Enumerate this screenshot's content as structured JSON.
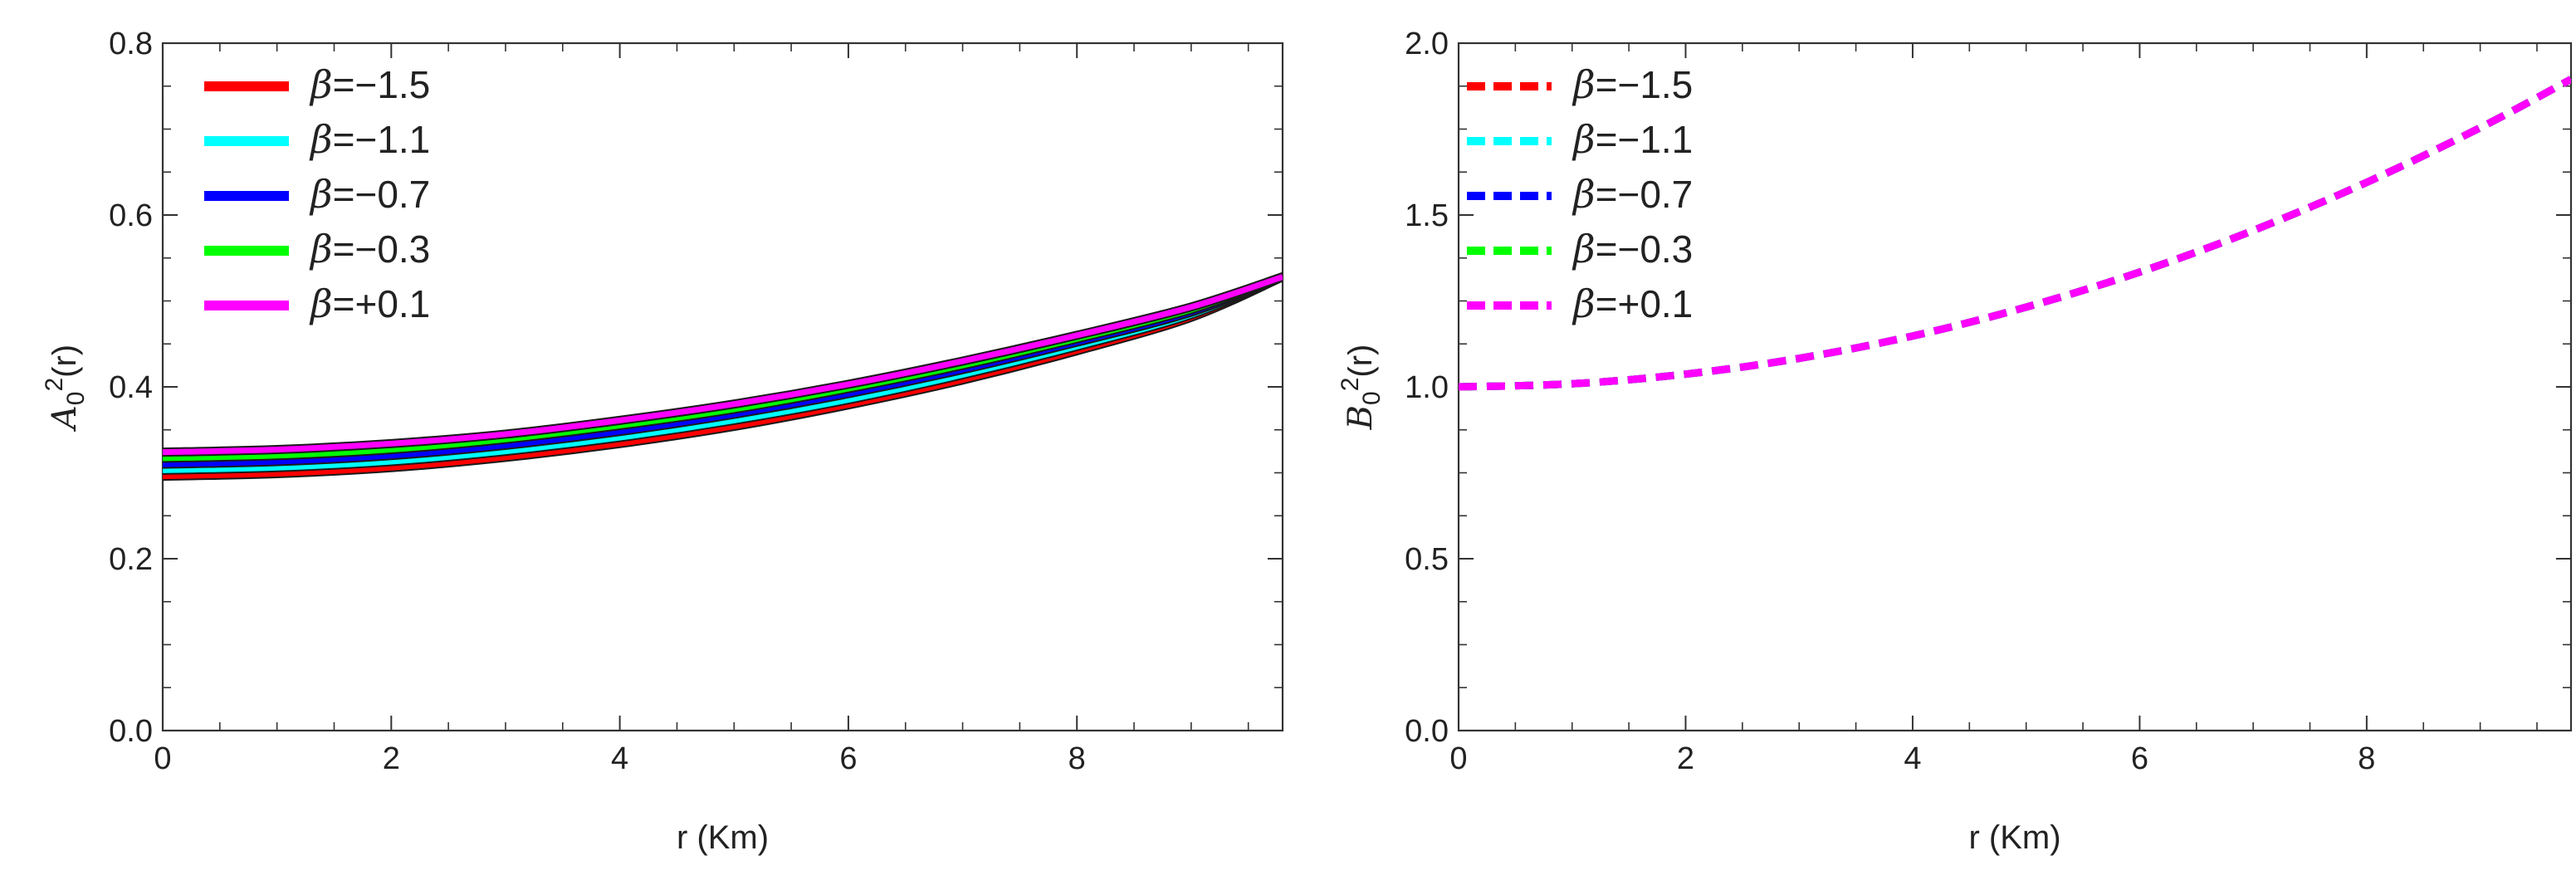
{
  "chart_data": [
    {
      "type": "line",
      "xlabel": "r (Km)",
      "ylabel": {
        "base": "A",
        "sub": "0",
        "sup": "2",
        "suffix": "(r)"
      },
      "xlim": [
        0,
        9.8
      ],
      "ylim": [
        0,
        0.8
      ],
      "xticks": [
        0,
        2,
        4,
        6,
        8
      ],
      "xtick_labels": [
        "0",
        "2",
        "4",
        "6",
        "8"
      ],
      "yticks": [
        0,
        0.2,
        0.4,
        0.6,
        0.8
      ],
      "ytick_labels": [
        "0.0",
        "0.2",
        "0.4",
        "0.6",
        "0.8"
      ],
      "grid": false,
      "legend_position": "top-left",
      "line_style": "solid",
      "x": [
        0,
        1,
        2,
        3,
        4,
        5,
        6,
        7,
        8,
        9,
        9.8
      ],
      "series": [
        {
          "name": "β=−1.5",
          "greek": "β",
          "value": "=−1.5",
          "color": "#ff0000",
          "values": [
            0.296,
            0.299,
            0.306,
            0.318,
            0.334,
            0.354,
            0.379,
            0.408,
            0.442,
            0.481,
            0.528
          ]
        },
        {
          "name": "β=−1.1",
          "greek": "β",
          "value": "=−1.1",
          "color": "#00ffff",
          "values": [
            0.303,
            0.306,
            0.313,
            0.325,
            0.341,
            0.361,
            0.385,
            0.414,
            0.447,
            0.484,
            0.528
          ]
        },
        {
          "name": "β=−0.7",
          "greek": "β",
          "value": "=−0.7",
          "color": "#0000ff",
          "values": [
            0.31,
            0.313,
            0.32,
            0.332,
            0.348,
            0.368,
            0.392,
            0.42,
            0.452,
            0.487,
            0.528
          ]
        },
        {
          "name": "β=−0.3",
          "greek": "β",
          "value": "=−0.3",
          "color": "#00ff00",
          "values": [
            0.317,
            0.32,
            0.327,
            0.339,
            0.355,
            0.374,
            0.398,
            0.425,
            0.456,
            0.49,
            0.528
          ]
        },
        {
          "name": "β=+0.1",
          "greek": "β",
          "value": "=+0.1",
          "color": "#ff00ff",
          "values": [
            0.324,
            0.327,
            0.334,
            0.345,
            0.361,
            0.38,
            0.403,
            0.43,
            0.46,
            0.493,
            0.528
          ]
        }
      ]
    },
    {
      "type": "line",
      "xlabel": "r (Km)",
      "ylabel": {
        "base": "B",
        "sub": "0",
        "sup": "2",
        "suffix": "(r)"
      },
      "xlim": [
        0,
        9.8
      ],
      "ylim": [
        0,
        2.0
      ],
      "xticks": [
        0,
        2,
        4,
        6,
        8
      ],
      "xtick_labels": [
        "0",
        "2",
        "4",
        "6",
        "8"
      ],
      "yticks": [
        0,
        0.5,
        1.0,
        1.5,
        2.0
      ],
      "ytick_labels": [
        "0.0",
        "0.5",
        "1.0",
        "1.5",
        "2.0"
      ],
      "grid": false,
      "legend_position": "top-left",
      "line_style": "dashed",
      "x": [
        0,
        1,
        2,
        3,
        4,
        5,
        6,
        7,
        8,
        9,
        9.8
      ],
      "series": [
        {
          "name": "β=−1.5",
          "greek": "β",
          "value": "=−1.5",
          "color": "#ff0000",
          "values": [
            1.0,
            1.009,
            1.037,
            1.083,
            1.148,
            1.232,
            1.334,
            1.455,
            1.595,
            1.754,
            1.895
          ]
        },
        {
          "name": "β=−1.1",
          "greek": "β",
          "value": "=−1.1",
          "color": "#00ffff",
          "values": [
            1.0,
            1.009,
            1.037,
            1.083,
            1.148,
            1.232,
            1.334,
            1.455,
            1.595,
            1.754,
            1.895
          ]
        },
        {
          "name": "β=−0.7",
          "greek": "β",
          "value": "=−0.7",
          "color": "#0000ff",
          "values": [
            1.0,
            1.009,
            1.037,
            1.083,
            1.148,
            1.232,
            1.334,
            1.455,
            1.595,
            1.754,
            1.895
          ]
        },
        {
          "name": "β=−0.3",
          "greek": "β",
          "value": "=−0.3",
          "color": "#00ff00",
          "values": [
            1.0,
            1.009,
            1.037,
            1.083,
            1.148,
            1.232,
            1.334,
            1.455,
            1.595,
            1.754,
            1.895
          ]
        },
        {
          "name": "β=+0.1",
          "greek": "β",
          "value": "=+0.1",
          "color": "#ff00ff",
          "values": [
            1.0,
            1.009,
            1.037,
            1.083,
            1.148,
            1.232,
            1.334,
            1.455,
            1.595,
            1.754,
            1.895
          ]
        }
      ]
    }
  ]
}
